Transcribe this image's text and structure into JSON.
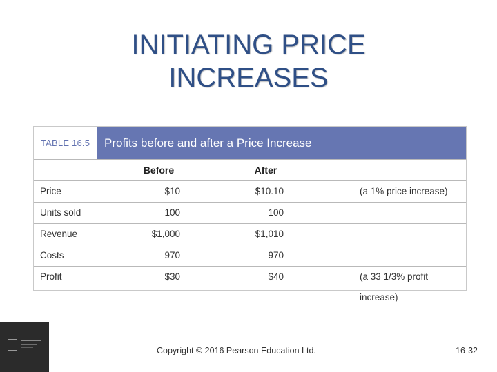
{
  "slide": {
    "title_line1": "INITIATING PRICE",
    "title_line2": "INCREASES"
  },
  "table": {
    "label": "TABLE 16.5",
    "title": "Profits before and after a Price Increase",
    "headers": {
      "before": "Before",
      "after": "After"
    },
    "rows": [
      {
        "label": "Price",
        "before": "$10",
        "after": "$10.10",
        "note": "(a 1% price increase)"
      },
      {
        "label": "Units sold",
        "before": "100",
        "after": "100",
        "note": ""
      },
      {
        "label": "Revenue",
        "before": "$1,000",
        "after": "$1,010",
        "note": ""
      },
      {
        "label": "Costs",
        "before": "–970",
        "after": "–970",
        "note": ""
      },
      {
        "label": "Profit",
        "before": "$30",
        "after": "$40",
        "note": "(a 33 1/3% profit increase)"
      }
    ]
  },
  "footer": {
    "copyright": "Copyright © 2016 Pearson Education Ltd.",
    "page": "16-32"
  },
  "colors": {
    "title": "#2f4f86",
    "table_header_bg": "#6676b2",
    "table_label_text": "#6272b0"
  }
}
